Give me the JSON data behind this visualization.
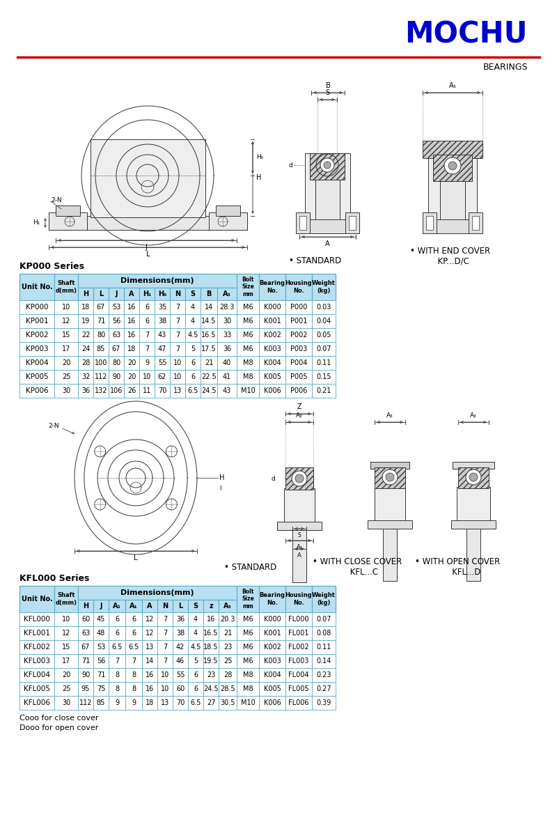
{
  "title": "MOCHU",
  "subtitle": "BEARINGS",
  "title_color": "#0000CC",
  "red_line_color": "#CC0000",
  "table_header_bg": "#B8E0F0",
  "table_border_color": "#5AAAC8",
  "kp_series_label": "KP000 Series",
  "kp_rows": [
    [
      "KP000",
      "10",
      "18",
      "67",
      "53",
      "16",
      "6",
      "35",
      "7",
      "4",
      "14",
      "28.3",
      "M6",
      "K000",
      "P000",
      "0.03"
    ],
    [
      "KP001",
      "12",
      "19",
      "71",
      "56",
      "16",
      "6",
      "38",
      "7",
      "4",
      "14.5",
      "30",
      "M6",
      "K001",
      "P001",
      "0.04"
    ],
    [
      "KP002",
      "15",
      "22",
      "80",
      "63",
      "16",
      "7",
      "43",
      "7",
      "4.5",
      "16.5",
      "33",
      "M6",
      "K002",
      "P002",
      "0.05"
    ],
    [
      "KP003",
      "17",
      "24",
      "85",
      "67",
      "18",
      "7",
      "47",
      "7",
      "5",
      "17.5",
      "36",
      "M6",
      "K003",
      "P003",
      "0.07"
    ],
    [
      "KP004",
      "20",
      "28",
      "100",
      "80",
      "20",
      "9",
      "55",
      "10",
      "6",
      "21",
      "40",
      "M8",
      "K004",
      "P004",
      "0.11"
    ],
    [
      "KP005",
      "25",
      "32",
      "112",
      "90",
      "20",
      "10",
      "62",
      "10",
      "6",
      "22.5",
      "41",
      "M8",
      "K005",
      "P005",
      "0.15"
    ],
    [
      "KP006",
      "30",
      "36",
      "132",
      "106",
      "26",
      "11",
      "70",
      "13",
      "6.5",
      "24.5",
      "43",
      "M10",
      "K006",
      "P006",
      "0.21"
    ]
  ],
  "kfl_series_label": "KFL000 Series",
  "kfl_rows": [
    [
      "KFL000",
      "10",
      "60",
      "45",
      "6",
      "6",
      "12",
      "7",
      "36",
      "4",
      "16",
      "20.3",
      "M6",
      "K000",
      "FL000",
      "0.07"
    ],
    [
      "KFL001",
      "12",
      "63",
      "48",
      "6",
      "6",
      "12",
      "7",
      "38",
      "4",
      "16.5",
      "21",
      "M6",
      "K001",
      "FL001",
      "0.08"
    ],
    [
      "KFL002",
      "15",
      "67",
      "53",
      "6.5",
      "6.5",
      "13",
      "7",
      "42",
      "4.5",
      "18.5",
      "23",
      "M6",
      "K002",
      "FL002",
      "0.11"
    ],
    [
      "KFL003",
      "17",
      "71",
      "56",
      "7",
      "7",
      "14",
      "7",
      "46",
      "5",
      "19.5",
      "25",
      "M6",
      "K003",
      "FL003",
      "0.14"
    ],
    [
      "KFL004",
      "20",
      "90",
      "71",
      "8",
      "8",
      "16",
      "10",
      "55",
      "6",
      "23",
      "28",
      "M8",
      "K004",
      "FL004",
      "0.23"
    ],
    [
      "KFL005",
      "25",
      "95",
      "75",
      "8",
      "8",
      "16",
      "10",
      "60",
      "6",
      "24.5",
      "28.5",
      "M8",
      "K005",
      "FL005",
      "0.27"
    ],
    [
      "KFL006",
      "30",
      "112",
      "85",
      "9",
      "9",
      "18",
      "13",
      "70",
      "6.5",
      "27",
      "30.5",
      "M10",
      "K006",
      "FL006",
      "0.39"
    ]
  ],
  "footer_notes": [
    "Cooo for close cover",
    "Dooo for open cover"
  ],
  "standard_label": "• STANDARD",
  "end_cover_label": "• WITH END COVER\n  KP...D/C",
  "kfl_standard_label": "• STANDARD",
  "kfl_close_cover_label": "• WITH CLOSE COVER\n     KFL...C",
  "kfl_open_cover_label": "• WITH OPEN COVER\n       KFL...D"
}
